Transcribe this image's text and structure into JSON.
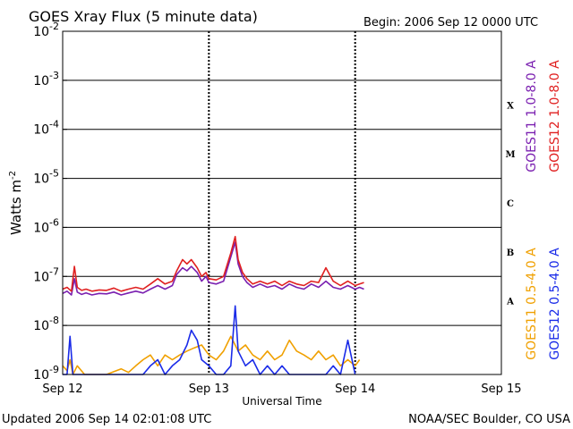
{
  "chart_data": {
    "type": "line",
    "title": "GOES Xray Flux (5 minute data)",
    "begin_label": "Begin:  2006 Sep 12 0000 UTC",
    "xlabel": "Universal Time",
    "ylabel_prefix": "Watts m",
    "ylabel_exponent": "-2",
    "y_scale": "log",
    "ylim": [
      1e-09,
      0.01
    ],
    "xlim_days": [
      "Sep 12",
      "Sep 15"
    ],
    "x_ticks": [
      {
        "day": 0,
        "label": "Sep 12"
      },
      {
        "day": 1,
        "label": "Sep 13"
      },
      {
        "day": 2,
        "label": "Sep 14"
      },
      {
        "day": 3,
        "label": "Sep 15"
      }
    ],
    "y_ticks": [
      {
        "exp": -2,
        "base": "10",
        "sup": "-2"
      },
      {
        "exp": -3,
        "base": "10",
        "sup": "-3"
      },
      {
        "exp": -4,
        "base": "10",
        "sup": "-4"
      },
      {
        "exp": -5,
        "base": "10",
        "sup": "-5"
      },
      {
        "exp": -6,
        "base": "10",
        "sup": "-6"
      },
      {
        "exp": -7,
        "base": "10",
        "sup": "-7"
      },
      {
        "exp": -8,
        "base": "10",
        "sup": "-8"
      },
      {
        "exp": -9,
        "base": "10",
        "sup": "-9"
      }
    ],
    "flare_classes": [
      {
        "label": "X",
        "exp": -3.5
      },
      {
        "label": "M",
        "exp": -4.5
      },
      {
        "label": "C",
        "exp": -5.5
      },
      {
        "label": "B",
        "exp": -6.5
      },
      {
        "label": "A",
        "exp": -7.5
      }
    ],
    "grid_y": true,
    "legend": [
      {
        "text": "GOES11 1.0-8.0 A",
        "color": "#7a1fb0"
      },
      {
        "text": "GOES12 1.0-8.0 A",
        "color": "#e02020"
      },
      {
        "text": "GOES11 0.5-4.0 A",
        "color": "#f0a000"
      },
      {
        "text": "GOES12 0.5-4.0 A",
        "color": "#1a2be8"
      }
    ],
    "series": [
      {
        "name": "GOES11 1.0-8.0 A",
        "color": "#7a1fb0",
        "x_days": [
          0.0,
          0.03,
          0.06,
          0.08,
          0.1,
          0.13,
          0.16,
          0.2,
          0.25,
          0.3,
          0.35,
          0.4,
          0.45,
          0.5,
          0.55,
          0.6,
          0.65,
          0.7,
          0.75,
          0.78,
          0.82,
          0.85,
          0.88,
          0.92,
          0.95,
          0.98,
          1.0,
          1.05,
          1.1,
          1.15,
          1.18,
          1.2,
          1.23,
          1.26,
          1.3,
          1.35,
          1.4,
          1.45,
          1.5,
          1.55,
          1.6,
          1.65,
          1.7,
          1.75,
          1.8,
          1.85,
          1.9,
          1.95,
          2.0,
          2.03,
          2.06
        ],
        "y": [
          4.5e-08,
          5e-08,
          4.2e-08,
          9e-08,
          4.8e-08,
          4.3e-08,
          4.6e-08,
          4.2e-08,
          4.5e-08,
          4.4e-08,
          4.8e-08,
          4.2e-08,
          4.6e-08,
          5e-08,
          4.6e-08,
          5.5e-08,
          6.5e-08,
          5.5e-08,
          6.5e-08,
          1.1e-07,
          1.5e-07,
          1.3e-07,
          1.6e-07,
          1.2e-07,
          8e-08,
          1e-07,
          7.5e-08,
          7e-08,
          8e-08,
          2.5e-07,
          5e-07,
          1.8e-07,
          1e-07,
          7.5e-08,
          6e-08,
          7e-08,
          6e-08,
          6.5e-08,
          5.5e-08,
          7e-08,
          6e-08,
          5.5e-08,
          7e-08,
          6e-08,
          8e-08,
          6e-08,
          5.5e-08,
          6.5e-08,
          5.5e-08,
          6e-08,
          5.5e-08
        ]
      },
      {
        "name": "GOES12 1.0-8.0 A",
        "color": "#e02020",
        "x_days": [
          0.0,
          0.03,
          0.06,
          0.08,
          0.1,
          0.13,
          0.16,
          0.2,
          0.25,
          0.3,
          0.35,
          0.4,
          0.45,
          0.5,
          0.55,
          0.6,
          0.65,
          0.7,
          0.75,
          0.78,
          0.82,
          0.85,
          0.88,
          0.92,
          0.95,
          0.98,
          1.0,
          1.05,
          1.1,
          1.15,
          1.18,
          1.2,
          1.23,
          1.26,
          1.3,
          1.35,
          1.4,
          1.45,
          1.5,
          1.55,
          1.6,
          1.65,
          1.7,
          1.75,
          1.8,
          1.85,
          1.9,
          1.95,
          2.0,
          2.03,
          2.06
        ],
        "y": [
          5.5e-08,
          6e-08,
          5e-08,
          1.6e-07,
          6e-08,
          5.2e-08,
          5.5e-08,
          5e-08,
          5.3e-08,
          5.2e-08,
          5.8e-08,
          5e-08,
          5.5e-08,
          6e-08,
          5.5e-08,
          7e-08,
          9e-08,
          7e-08,
          8e-08,
          1.3e-07,
          2.2e-07,
          1.8e-07,
          2.2e-07,
          1.5e-07,
          1e-07,
          1.2e-07,
          9e-08,
          8.5e-08,
          1e-07,
          3e-07,
          6.5e-07,
          2.2e-07,
          1.2e-07,
          9e-08,
          7e-08,
          8e-08,
          7e-08,
          8e-08,
          6.5e-08,
          8e-08,
          7e-08,
          6.5e-08,
          8e-08,
          7.5e-08,
          1.5e-07,
          8e-08,
          6.5e-08,
          8e-08,
          6.5e-08,
          7e-08,
          7.5e-08
        ]
      },
      {
        "name": "GOES11 0.5-4.0 A",
        "color": "#f0a000",
        "x_days": [
          0.0,
          0.03,
          0.05,
          0.07,
          0.1,
          0.15,
          0.2,
          0.3,
          0.4,
          0.45,
          0.5,
          0.55,
          0.6,
          0.65,
          0.7,
          0.75,
          0.8,
          0.85,
          0.9,
          0.95,
          1.0,
          1.05,
          1.1,
          1.15,
          1.2,
          1.25,
          1.3,
          1.35,
          1.4,
          1.45,
          1.5,
          1.55,
          1.6,
          1.65,
          1.7,
          1.75,
          1.8,
          1.85,
          1.9,
          1.95,
          2.0,
          2.03
        ],
        "y": [
          1.5e-09,
          1.2e-09,
          2e-09,
          1e-09,
          1.5e-09,
          1e-09,
          1e-09,
          1e-09,
          1.3e-09,
          1.1e-09,
          1.5e-09,
          2e-09,
          2.5e-09,
          1.5e-09,
          2.5e-09,
          2e-09,
          2.5e-09,
          3e-09,
          3.5e-09,
          4e-09,
          2.5e-09,
          2e-09,
          3e-09,
          6e-09,
          3e-09,
          4e-09,
          2.5e-09,
          2e-09,
          3e-09,
          2e-09,
          2.5e-09,
          5e-09,
          3e-09,
          2.5e-09,
          2e-09,
          3e-09,
          2e-09,
          2.5e-09,
          1.5e-09,
          2e-09,
          1.5e-09,
          2e-09
        ]
      },
      {
        "name": "GOES12 0.5-4.0 A",
        "color": "#1a2be8",
        "x_days": [
          0.0,
          0.03,
          0.05,
          0.07,
          0.1,
          0.2,
          0.3,
          0.4,
          0.5,
          0.55,
          0.6,
          0.65,
          0.7,
          0.75,
          0.8,
          0.85,
          0.88,
          0.92,
          0.95,
          1.0,
          1.05,
          1.1,
          1.15,
          1.18,
          1.2,
          1.25,
          1.3,
          1.35,
          1.4,
          1.45,
          1.5,
          1.55,
          1.6,
          1.65,
          1.7,
          1.75,
          1.8,
          1.85,
          1.9,
          1.95,
          2.0
        ],
        "y": [
          1e-09,
          1e-09,
          6e-09,
          1e-09,
          1e-09,
          1e-09,
          1e-09,
          1e-09,
          1e-09,
          1e-09,
          1.5e-09,
          2e-09,
          1e-09,
          1.5e-09,
          2e-09,
          4e-09,
          8e-09,
          5e-09,
          2e-09,
          1.5e-09,
          1e-09,
          1e-09,
          1.5e-09,
          2.5e-08,
          3e-09,
          1.5e-09,
          2e-09,
          1e-09,
          1.5e-09,
          1e-09,
          1.5e-09,
          1e-09,
          1e-09,
          1e-09,
          1e-09,
          1e-09,
          1e-09,
          1.5e-09,
          1e-09,
          5e-09,
          1e-09
        ]
      }
    ]
  },
  "footer": {
    "updated": "Updated 2006 Sep 14 02:01:08 UTC",
    "credit": "NOAA/SEC Boulder, CO USA"
  }
}
